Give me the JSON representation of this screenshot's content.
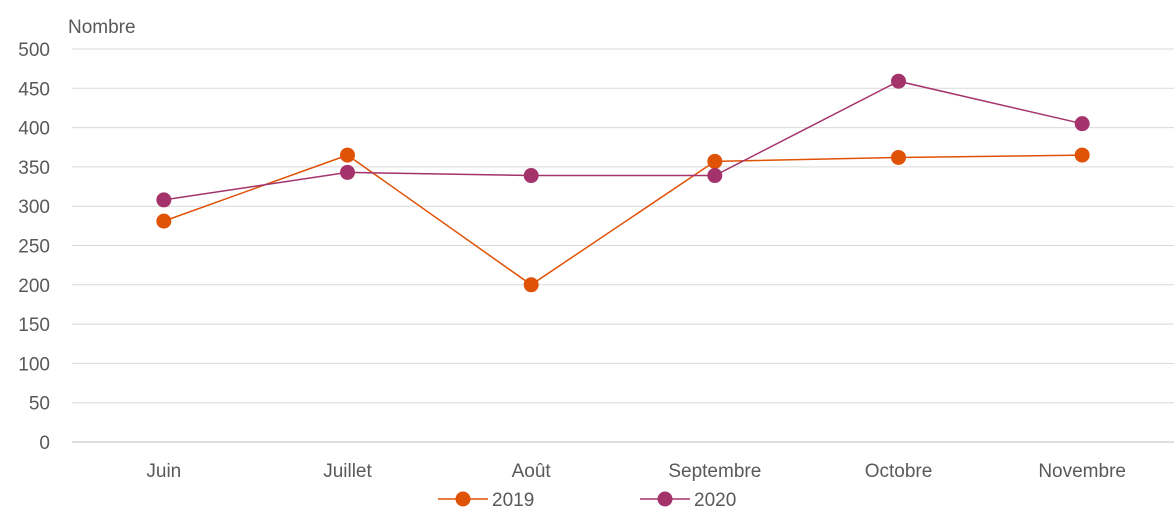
{
  "chart_data": {
    "type": "line",
    "title": "",
    "ylabel": "Nombre",
    "xlabel": "",
    "categories": [
      "Juin",
      "Juillet",
      "Août",
      "Septembre",
      "Octobre",
      "Novembre"
    ],
    "ylim": [
      0,
      500
    ],
    "yticks": [
      0,
      50,
      100,
      150,
      200,
      250,
      300,
      350,
      400,
      450,
      500
    ],
    "grid": true,
    "legend": "bottom",
    "series": [
      {
        "name": "2019",
        "color": "#e05206",
        "values": [
          281,
          365,
          200,
          357,
          362,
          365
        ]
      },
      {
        "name": "2020",
        "color": "#a4336b",
        "values": [
          308,
          343,
          339,
          339,
          459,
          405
        ]
      }
    ]
  }
}
